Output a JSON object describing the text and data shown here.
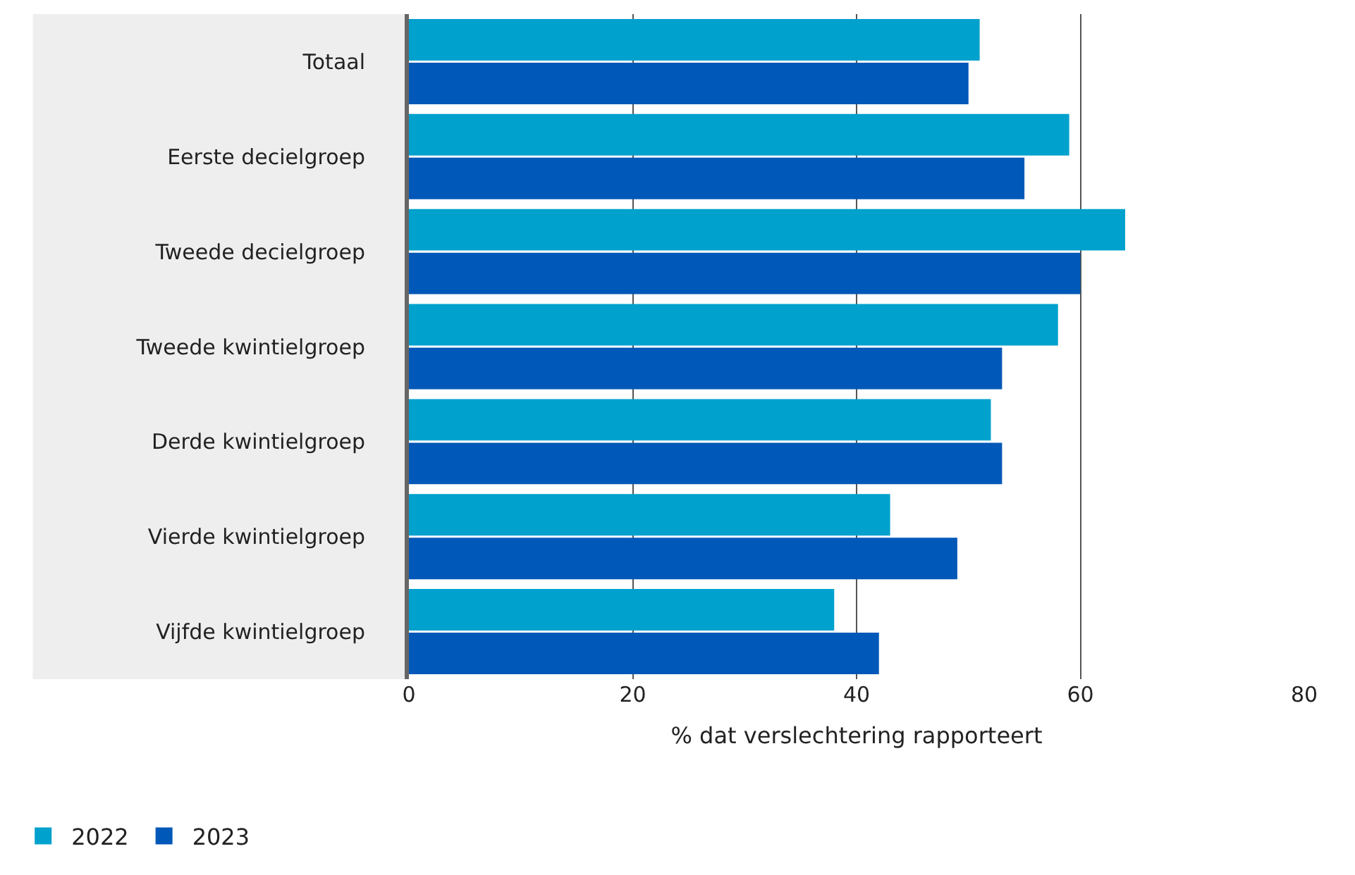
{
  "chart_data": {
    "type": "bar",
    "orientation": "horizontal",
    "xlabel": "% dat verslechtering rapporteert",
    "categories": [
      "Totaal",
      "Eerste decielgroep",
      "Tweede decielgroep",
      "Tweede kwintielgroep",
      "Derde kwintielgroep",
      "Vierde kwintielgroep",
      "Vijfde kwintielgroep"
    ],
    "series": [
      {
        "name": "2022",
        "color": "#00a1cd",
        "values": [
          51,
          59,
          64,
          58,
          52,
          43,
          38
        ]
      },
      {
        "name": "2023",
        "color": "#0058b8",
        "values": [
          50,
          55,
          60,
          53,
          53,
          49,
          42
        ]
      }
    ],
    "xlim": [
      0,
      80
    ],
    "xticks": [
      0,
      20,
      40,
      60,
      80
    ],
    "grid": "x",
    "legend": "bottom left"
  }
}
